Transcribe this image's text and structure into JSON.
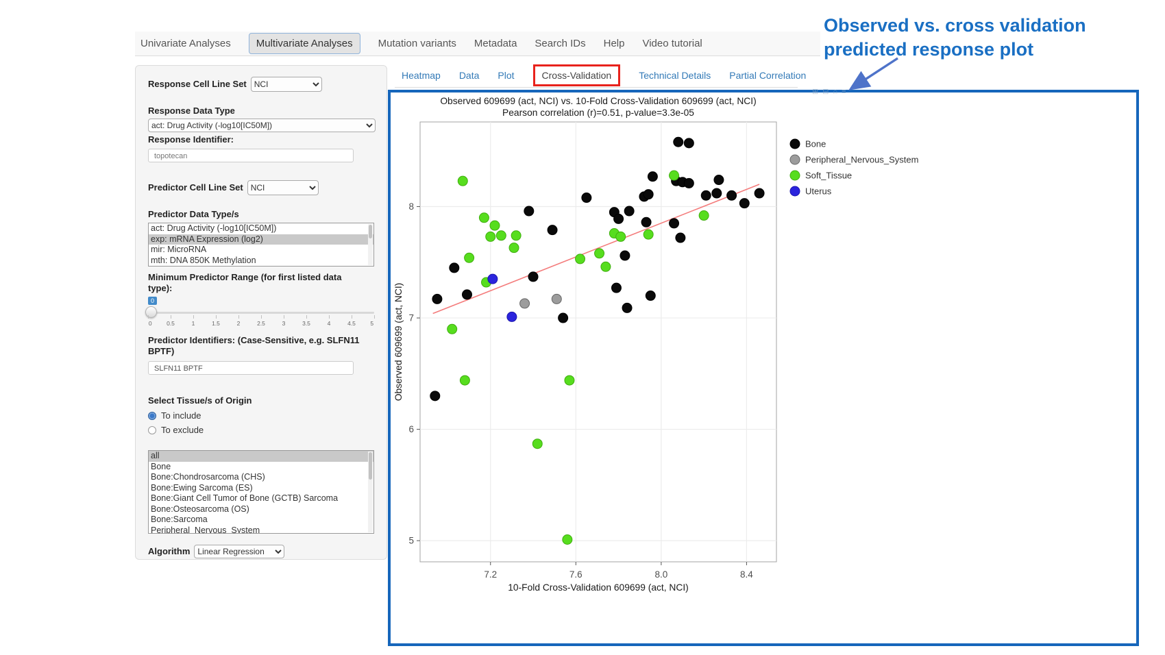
{
  "nav": {
    "tabs": [
      "Univariate Analyses",
      "Multivariate Analyses",
      "Mutation variants",
      "Metadata",
      "Search IDs",
      "Help",
      "Video tutorial"
    ],
    "active": "Multivariate Analyses"
  },
  "sidebar": {
    "response_cell_line_set": {
      "label": "Response Cell Line Set",
      "value": "NCI"
    },
    "response_data_type": {
      "label": "Response Data Type",
      "value": "act: Drug Activity (-log10[IC50M])"
    },
    "response_identifier": {
      "label": "Response Identifier:",
      "value": "topotecan"
    },
    "predictor_cell_line_set": {
      "label": "Predictor Cell Line Set",
      "value": "NCI"
    },
    "predictor_data_types": {
      "label": "Predictor Data Type/s",
      "options": [
        "act: Drug Activity (-log10[IC50M])",
        "exp: mRNA Expression (log2)",
        "mir: MicroRNA",
        "mth: DNA 850K Methylation"
      ],
      "selected": "exp: mRNA Expression (log2)"
    },
    "min_predictor_range": {
      "label": "Minimum Predictor Range (for first listed data type):",
      "value": "0",
      "tick_labels": [
        "0",
        "0.5",
        "1",
        "1.5",
        "2",
        "2.5",
        "3",
        "3.5",
        "4",
        "4.5",
        "5"
      ]
    },
    "predictor_identifiers": {
      "label": "Predictor Identifiers: (Case-Sensitive, e.g. SLFN11 BPTF)",
      "value": "SLFN11 BPTF"
    },
    "tissue_origin": {
      "label": "Select Tissue/s of Origin",
      "radios": [
        "To include",
        "To exclude"
      ],
      "radio_selected": "To include",
      "options": [
        "all",
        "Bone",
        "Bone:Chondrosarcoma (CHS)",
        "Bone:Ewing Sarcoma (ES)",
        "Bone:Giant Cell Tumor of Bone (GCTB) Sarcoma",
        "Bone:Osteosarcoma (OS)",
        "Bone:Sarcoma",
        "Peripheral_Nervous_System"
      ],
      "selected": "all"
    },
    "algorithm": {
      "label": "Algorithm",
      "value": "Linear Regression"
    }
  },
  "result_tabs": {
    "tabs": [
      "Heatmap",
      "Data",
      "Plot",
      "Cross-Validation",
      "Technical Details",
      "Partial Correlation"
    ],
    "active": "Cross-Validation"
  },
  "annotation": {
    "line1": "Observed vs. cross validation",
    "line2": "predicted response plot",
    "text_color": "#1a6fc3",
    "arrow_color": "#4e73c9"
  },
  "plot_frame": {
    "border_color": "#1666bb",
    "active_tab_box_color": "#e8221c"
  },
  "chart_data": {
    "type": "scatter",
    "title": "Observed 609699 (act, NCI) vs. 10-Fold Cross-Validation 609699 (act, NCI)",
    "subtitle": "Pearson correlation (r)=0.51, p-value=3.3e-05",
    "xlabel": "10-Fold Cross-Validation 609699 (act, NCI)",
    "ylabel": "Observed 609699 (act, NCI)",
    "xlim": [
      6.87,
      8.54
    ],
    "ylim": [
      4.81,
      8.76
    ],
    "xticks": [
      7.2,
      7.6,
      8.0,
      8.4
    ],
    "xtick_labels": [
      "7.2",
      "7.6",
      "8.0",
      "8.4"
    ],
    "yticks": [
      5,
      6,
      7,
      8
    ],
    "ytick_labels": [
      "5",
      "6",
      "7",
      "8"
    ],
    "grid": true,
    "legend_position": "right",
    "trend_line": {
      "x1": 6.93,
      "y1": 7.04,
      "x2": 8.46,
      "y2": 8.2,
      "color": "#f47c7c"
    },
    "series": [
      {
        "name": "Bone",
        "color": "#0a0a0a",
        "stroke": "#000000",
        "points": [
          [
            7.65,
            8.08
          ],
          [
            8.08,
            8.58
          ],
          [
            8.13,
            8.57
          ],
          [
            7.96,
            8.27
          ],
          [
            8.07,
            8.23
          ],
          [
            8.1,
            8.22
          ],
          [
            8.13,
            8.21
          ],
          [
            8.27,
            8.24
          ],
          [
            8.21,
            8.1
          ],
          [
            8.26,
            8.12
          ],
          [
            7.92,
            8.09
          ],
          [
            7.94,
            8.11
          ],
          [
            8.33,
            8.1
          ],
          [
            8.39,
            8.03
          ],
          [
            8.46,
            8.12
          ],
          [
            7.38,
            7.96
          ],
          [
            7.49,
            7.79
          ],
          [
            7.78,
            7.95
          ],
          [
            7.8,
            7.89
          ],
          [
            7.85,
            7.96
          ],
          [
            7.93,
            7.86
          ],
          [
            8.06,
            7.85
          ],
          [
            8.09,
            7.72
          ],
          [
            7.03,
            7.45
          ],
          [
            7.83,
            7.56
          ],
          [
            7.4,
            7.37
          ],
          [
            7.09,
            7.21
          ],
          [
            6.95,
            7.17
          ],
          [
            7.79,
            7.27
          ],
          [
            7.95,
            7.2
          ],
          [
            7.84,
            7.09
          ],
          [
            7.54,
            7.0
          ],
          [
            6.94,
            6.3
          ]
        ]
      },
      {
        "name": "Peripheral_Nervous_System",
        "color": "#9c9c9c",
        "stroke": "#666666",
        "points": [
          [
            7.51,
            7.17
          ],
          [
            7.36,
            7.13
          ]
        ]
      },
      {
        "name": "Soft_Tissue",
        "color": "#57dd1e",
        "stroke": "#3fae0e",
        "points": [
          [
            7.07,
            8.23
          ],
          [
            8.06,
            8.28
          ],
          [
            7.17,
            7.9
          ],
          [
            7.22,
            7.83
          ],
          [
            7.2,
            7.73
          ],
          [
            7.25,
            7.74
          ],
          [
            7.32,
            7.74
          ],
          [
            7.31,
            7.63
          ],
          [
            7.78,
            7.76
          ],
          [
            7.81,
            7.73
          ],
          [
            7.94,
            7.75
          ],
          [
            8.2,
            7.92
          ],
          [
            7.1,
            7.54
          ],
          [
            7.62,
            7.53
          ],
          [
            7.71,
            7.58
          ],
          [
            7.74,
            7.46
          ],
          [
            7.18,
            7.32
          ],
          [
            7.02,
            6.9
          ],
          [
            7.08,
            6.44
          ],
          [
            7.57,
            6.44
          ],
          [
            7.42,
            5.87
          ],
          [
            7.56,
            5.01
          ]
        ]
      },
      {
        "name": "Uterus",
        "color": "#2b24dd",
        "stroke": "#1b16ae",
        "points": [
          [
            7.21,
            7.35
          ],
          [
            7.3,
            7.01
          ]
        ]
      }
    ]
  }
}
